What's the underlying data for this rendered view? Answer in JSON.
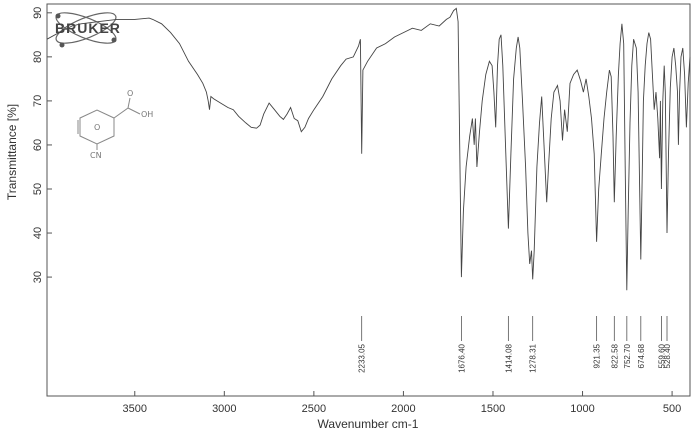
{
  "brand": "BRUKER",
  "structure_labels": {
    "carbonyl": "O",
    "hydroxyl": "OH",
    "ring": "O",
    "substituent": "CN"
  },
  "chart_data": {
    "type": "line",
    "title": "",
    "xlabel": "Wavenumber cm-1",
    "ylabel": "Transmittance [%]",
    "xlim": [
      3990,
      400
    ],
    "ylim": [
      3,
      92
    ],
    "x_ticks": [
      3500,
      3000,
      2500,
      2000,
      1500,
      1000,
      500
    ],
    "y_ticks": [
      30,
      40,
      50,
      60,
      70,
      80,
      90
    ],
    "grid": false,
    "series": [
      {
        "points": [
          [
            3990,
            84
          ],
          [
            3900,
            86
          ],
          [
            3850,
            87
          ],
          [
            3800,
            87.5
          ],
          [
            3700,
            88
          ],
          [
            3600,
            88.5
          ],
          [
            3500,
            88.5
          ],
          [
            3420,
            88.8
          ],
          [
            3400,
            88.5
          ],
          [
            3350,
            87.5
          ],
          [
            3300,
            85.5
          ],
          [
            3250,
            83
          ],
          [
            3200,
            79
          ],
          [
            3150,
            76
          ],
          [
            3120,
            74
          ],
          [
            3100,
            72
          ],
          [
            3090,
            70
          ],
          [
            3083,
            68
          ],
          [
            3075,
            71
          ],
          [
            3060,
            70.5
          ],
          [
            3020,
            69.5
          ],
          [
            2980,
            68.5
          ],
          [
            2950,
            68
          ],
          [
            2920,
            66.5
          ],
          [
            2880,
            65
          ],
          [
            2850,
            64
          ],
          [
            2820,
            63.8
          ],
          [
            2800,
            64.5
          ],
          [
            2780,
            67
          ],
          [
            2750,
            69.5
          ],
          [
            2720,
            68
          ],
          [
            2690,
            66.5
          ],
          [
            2670,
            65.8
          ],
          [
            2650,
            67
          ],
          [
            2630,
            68.5
          ],
          [
            2610,
            66
          ],
          [
            2590,
            65.5
          ],
          [
            2570,
            63
          ],
          [
            2550,
            64
          ],
          [
            2530,
            66
          ],
          [
            2500,
            68
          ],
          [
            2450,
            71
          ],
          [
            2400,
            75
          ],
          [
            2350,
            78
          ],
          [
            2320,
            79.5
          ],
          [
            2280,
            80
          ],
          [
            2250,
            82.5
          ],
          [
            2240,
            84
          ],
          [
            2233,
            58
          ],
          [
            2226,
            77
          ],
          [
            2200,
            79
          ],
          [
            2150,
            82
          ],
          [
            2100,
            83
          ],
          [
            2050,
            84.5
          ],
          [
            2000,
            85.5
          ],
          [
            1950,
            86.5
          ],
          [
            1900,
            86
          ],
          [
            1850,
            87.5
          ],
          [
            1800,
            87
          ],
          [
            1760,
            88.5
          ],
          [
            1740,
            89
          ],
          [
            1720,
            90.5
          ],
          [
            1705,
            91
          ],
          [
            1695,
            88
          ],
          [
            1686,
            60
          ],
          [
            1676.4,
            30
          ],
          [
            1665,
            45
          ],
          [
            1650,
            55
          ],
          [
            1630,
            62
          ],
          [
            1615,
            66
          ],
          [
            1605,
            60
          ],
          [
            1598,
            66
          ],
          [
            1590,
            55
          ],
          [
            1575,
            63
          ],
          [
            1560,
            70
          ],
          [
            1540,
            76
          ],
          [
            1520,
            79
          ],
          [
            1505,
            78
          ],
          [
            1495,
            72
          ],
          [
            1485,
            64
          ],
          [
            1475,
            78
          ],
          [
            1465,
            84
          ],
          [
            1455,
            85
          ],
          [
            1445,
            78
          ],
          [
            1430,
            60
          ],
          [
            1414.08,
            41
          ],
          [
            1400,
            58
          ],
          [
            1385,
            75
          ],
          [
            1370,
            82
          ],
          [
            1360,
            84.5
          ],
          [
            1350,
            82
          ],
          [
            1335,
            70
          ],
          [
            1318,
            55
          ],
          [
            1305,
            40
          ],
          [
            1295,
            33
          ],
          [
            1285,
            36
          ],
          [
            1278.31,
            29.5
          ],
          [
            1270,
            36
          ],
          [
            1255,
            55
          ],
          [
            1240,
            65
          ],
          [
            1228,
            71
          ],
          [
            1215,
            60
          ],
          [
            1200,
            47
          ],
          [
            1190,
            55
          ],
          [
            1175,
            66
          ],
          [
            1160,
            72
          ],
          [
            1140,
            73.5
          ],
          [
            1125,
            70
          ],
          [
            1112,
            61
          ],
          [
            1100,
            68
          ],
          [
            1085,
            63
          ],
          [
            1070,
            74
          ],
          [
            1050,
            76
          ],
          [
            1030,
            77
          ],
          [
            1010,
            74.5
          ],
          [
            995,
            72
          ],
          [
            980,
            75
          ],
          [
            965,
            71
          ],
          [
            950,
            66
          ],
          [
            935,
            58
          ],
          [
            921.35,
            38
          ],
          [
            910,
            50
          ],
          [
            895,
            58
          ],
          [
            880,
            66
          ],
          [
            865,
            72
          ],
          [
            850,
            77
          ],
          [
            840,
            75.5
          ],
          [
            830,
            62
          ],
          [
            822.58,
            47
          ],
          [
            812,
            62
          ],
          [
            800,
            76
          ],
          [
            790,
            83
          ],
          [
            780,
            87.5
          ],
          [
            770,
            83
          ],
          [
            762,
            55
          ],
          [
            752.7,
            27
          ],
          [
            745,
            45
          ],
          [
            735,
            65
          ],
          [
            725,
            78
          ],
          [
            715,
            84
          ],
          [
            700,
            82
          ],
          [
            690,
            72
          ],
          [
            680,
            48
          ],
          [
            674.68,
            34
          ],
          [
            668,
            50
          ],
          [
            660,
            70
          ],
          [
            650,
            78
          ],
          [
            640,
            83
          ],
          [
            630,
            85.5
          ],
          [
            620,
            84
          ],
          [
            610,
            76
          ],
          [
            600,
            68
          ],
          [
            590,
            72
          ],
          [
            580,
            66
          ],
          [
            570,
            57
          ],
          [
            565,
            70
          ],
          [
            559.6,
            50
          ],
          [
            552,
            70
          ],
          [
            544,
            78
          ],
          [
            538,
            72
          ],
          [
            528.4,
            40
          ],
          [
            520,
            58
          ],
          [
            510,
            73
          ],
          [
            500,
            80
          ],
          [
            490,
            82
          ],
          [
            480,
            78
          ],
          [
            470,
            72
          ],
          [
            465,
            60
          ],
          [
            458,
            72
          ],
          [
            450,
            80
          ],
          [
            440,
            82
          ],
          [
            430,
            76
          ],
          [
            420,
            64
          ],
          [
            410,
            74
          ],
          [
            400,
            80
          ]
        ]
      }
    ],
    "peak_labels": [
      {
        "x": 2233.05,
        "label": "2233.05"
      },
      {
        "x": 1676.4,
        "label": "1676.40"
      },
      {
        "x": 1414.08,
        "label": "1414.08"
      },
      {
        "x": 1278.31,
        "label": "1278.31"
      },
      {
        "x": 921.35,
        "label": "921.35"
      },
      {
        "x": 822.58,
        "label": "822.58"
      },
      {
        "x": 752.7,
        "label": "752.70"
      },
      {
        "x": 674.68,
        "label": "674.68"
      },
      {
        "x": 559.6,
        "label": "559.60"
      },
      {
        "x": 528.4,
        "label": "528.40"
      }
    ]
  }
}
